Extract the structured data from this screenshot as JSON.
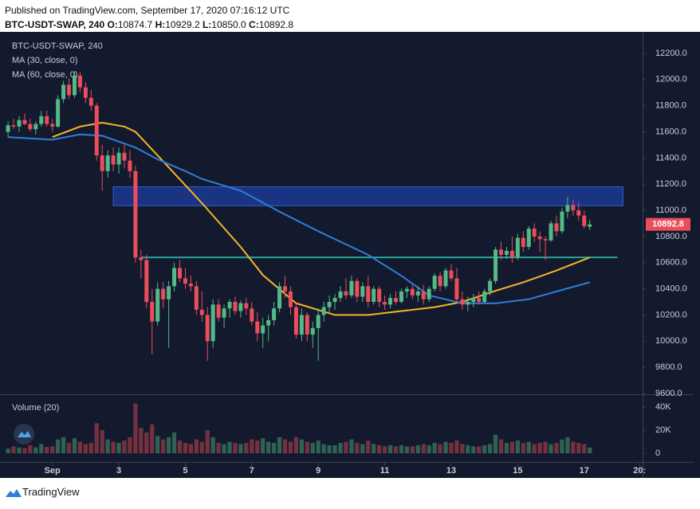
{
  "chart_data": {
    "type": "candlestick",
    "publisher": "Published on TradingView.com, September 17, 2020 07:16:12 UTC",
    "title": "BTC-USDT-SWAP, 240",
    "ohlc": {
      "labels": [
        "O:",
        "H:",
        "L:",
        "C:"
      ],
      "values": [
        10874.7,
        10929.2,
        10850,
        10892.8
      ],
      "value_labels": [
        "10874.7",
        "10929.2",
        "10850.0",
        "10892.8"
      ]
    },
    "up_color": "#53b987",
    "down_color": "#eb4d5c",
    "candles": [
      [
        11600,
        11680,
        11560,
        11650
      ],
      [
        11650,
        11700,
        11620,
        11640
      ],
      [
        11640,
        11720,
        11600,
        11690
      ],
      [
        11690,
        11740,
        11650,
        11660
      ],
      [
        11660,
        11700,
        11600,
        11620
      ],
      [
        11620,
        11680,
        11580,
        11660
      ],
      [
        11660,
        11760,
        11640,
        11720
      ],
      [
        11720,
        11760,
        11640,
        11660
      ],
      [
        11660,
        11700,
        11600,
        11640
      ],
      [
        11640,
        11880,
        11630,
        11850
      ],
      [
        11850,
        11990,
        11820,
        11960
      ],
      [
        11960,
        12010,
        11850,
        11880
      ],
      [
        11880,
        12060,
        11860,
        12030
      ],
      [
        12030,
        12060,
        11900,
        11940
      ],
      [
        11940,
        11980,
        11820,
        11860
      ],
      [
        11860,
        11920,
        11760,
        11800
      ],
      [
        11800,
        11820,
        11380,
        11420
      ],
      [
        11420,
        11500,
        11150,
        11300
      ],
      [
        11300,
        11460,
        11250,
        11420
      ],
      [
        11420,
        11480,
        11300,
        11350
      ],
      [
        11350,
        11480,
        11280,
        11440
      ],
      [
        11440,
        11500,
        11320,
        11380
      ],
      [
        11380,
        11460,
        11250,
        11300
      ],
      [
        11300,
        11340,
        10600,
        10640
      ],
      [
        10640,
        10700,
        10480,
        10620
      ],
      [
        10620,
        10660,
        10250,
        10300
      ],
      [
        10300,
        10400,
        9900,
        10150
      ],
      [
        10150,
        10450,
        10120,
        10400
      ],
      [
        10400,
        10450,
        10250,
        10320
      ],
      [
        10320,
        10460,
        9950,
        10420
      ],
      [
        10420,
        10600,
        10380,
        10560
      ],
      [
        10560,
        10620,
        10450,
        10480
      ],
      [
        10480,
        10560,
        10400,
        10440
      ],
      [
        10440,
        10500,
        10380,
        10420
      ],
      [
        10420,
        10460,
        10200,
        10240
      ],
      [
        10240,
        10380,
        10150,
        10200
      ],
      [
        10200,
        10260,
        9850,
        10000
      ],
      [
        10000,
        10320,
        9950,
        10280
      ],
      [
        10280,
        10320,
        10150,
        10180
      ],
      [
        10180,
        10280,
        10100,
        10250
      ],
      [
        10250,
        10320,
        10180,
        10300
      ],
      [
        10300,
        10340,
        10200,
        10230
      ],
      [
        10230,
        10310,
        10180,
        10290
      ],
      [
        10290,
        10330,
        10200,
        10250
      ],
      [
        10250,
        10300,
        10120,
        10150
      ],
      [
        10150,
        10220,
        10000,
        10060
      ],
      [
        10060,
        10180,
        9950,
        10120
      ],
      [
        10120,
        10200,
        10000,
        10160
      ],
      [
        10160,
        10300,
        10120,
        10250
      ],
      [
        10250,
        10450,
        10220,
        10420
      ],
      [
        10420,
        10500,
        10330,
        10380
      ],
      [
        10380,
        10420,
        10200,
        10260
      ],
      [
        10260,
        10300,
        10020,
        10050
      ],
      [
        10050,
        10250,
        10000,
        10200
      ],
      [
        10200,
        10220,
        10000,
        10050
      ],
      [
        10050,
        10150,
        9950,
        10100
      ],
      [
        10100,
        10250,
        9850,
        10200
      ],
      [
        10200,
        10300,
        10150,
        10260
      ],
      [
        10260,
        10350,
        10220,
        10300
      ],
      [
        10300,
        10360,
        10240,
        10330
      ],
      [
        10330,
        10420,
        10300,
        10380
      ],
      [
        10380,
        10480,
        10320,
        10350
      ],
      [
        10350,
        10500,
        10330,
        10460
      ],
      [
        10460,
        10480,
        10300,
        10340
      ],
      [
        10340,
        10450,
        10300,
        10420
      ],
      [
        10420,
        10500,
        10260,
        10300
      ],
      [
        10300,
        10420,
        10280,
        10400
      ],
      [
        10400,
        10420,
        10260,
        10300
      ],
      [
        10300,
        10350,
        10240,
        10280
      ],
      [
        10280,
        10360,
        10250,
        10330
      ],
      [
        10330,
        10380,
        10280,
        10300
      ],
      [
        10300,
        10400,
        10290,
        10380
      ],
      [
        10380,
        10420,
        10330,
        10400
      ],
      [
        10400,
        10430,
        10320,
        10350
      ],
      [
        10350,
        10420,
        10300,
        10380
      ],
      [
        10380,
        10430,
        10280,
        10320
      ],
      [
        10320,
        10420,
        10300,
        10400
      ],
      [
        10400,
        10520,
        10380,
        10500
      ],
      [
        10500,
        10530,
        10380,
        10420
      ],
      [
        10420,
        10560,
        10400,
        10540
      ],
      [
        10540,
        10590,
        10460,
        10480
      ],
      [
        10480,
        10560,
        10300,
        10320
      ],
      [
        10320,
        10380,
        10240,
        10280
      ],
      [
        10280,
        10340,
        10230,
        10300
      ],
      [
        10300,
        10360,
        10260,
        10330
      ],
      [
        10330,
        10380,
        10280,
        10300
      ],
      [
        10300,
        10400,
        10290,
        10380
      ],
      [
        10380,
        10480,
        10350,
        10460
      ],
      [
        10460,
        10720,
        10440,
        10700
      ],
      [
        10700,
        10760,
        10620,
        10660
      ],
      [
        10660,
        10720,
        10630,
        10690
      ],
      [
        10690,
        10800,
        10600,
        10640
      ],
      [
        10640,
        10820,
        10620,
        10790
      ],
      [
        10790,
        10840,
        10680,
        10720
      ],
      [
        10720,
        10880,
        10700,
        10860
      ],
      [
        10860,
        10900,
        10760,
        10800
      ],
      [
        10800,
        10840,
        10680,
        10780
      ],
      [
        10780,
        10800,
        10620,
        10770
      ],
      [
        10770,
        10920,
        10760,
        10900
      ],
      [
        10900,
        10960,
        10800,
        10840
      ],
      [
        10840,
        11020,
        10820,
        10990
      ],
      [
        10990,
        11100,
        10940,
        11040
      ],
      [
        11040,
        11080,
        10960,
        11000
      ],
      [
        11000,
        11060,
        10920,
        10960
      ],
      [
        10960,
        11000,
        10860,
        10880
      ],
      [
        10874.7,
        10929.2,
        10850,
        10892.8
      ]
    ],
    "xlim": [
      -0.3,
      114.4
    ],
    "xticks": [
      {
        "value": 8,
        "label": "Sep"
      },
      {
        "value": 20,
        "label": "3"
      },
      {
        "value": 32,
        "label": "5"
      },
      {
        "value": 44,
        "label": "7"
      },
      {
        "value": 56,
        "label": "9"
      },
      {
        "value": 68,
        "label": "11"
      },
      {
        "value": 80,
        "label": "13"
      },
      {
        "value": 92,
        "label": "15"
      },
      {
        "value": 104,
        "label": "17"
      },
      {
        "value": 114,
        "label": "20:"
      }
    ],
    "ylim": [
      9606,
      12352
    ],
    "yticks": [
      {
        "value": 12200,
        "label": "12200.0"
      },
      {
        "value": 12000,
        "label": "12000.0"
      },
      {
        "value": 11800,
        "label": "11800.0"
      },
      {
        "value": 11600,
        "label": "11600.0"
      },
      {
        "value": 11400,
        "label": "11400.0"
      },
      {
        "value": 11200,
        "label": "11200.0"
      },
      {
        "value": 11000,
        "label": "11000.0"
      },
      {
        "value": 10800,
        "label": "10800.0"
      },
      {
        "value": 10600,
        "label": "10600.0"
      },
      {
        "value": 10400,
        "label": "10400.0"
      },
      {
        "value": 10200,
        "label": "10200.0"
      },
      {
        "value": 10000,
        "label": "10000.0"
      },
      {
        "value": 9800,
        "label": "9800.0"
      },
      {
        "value": 9600,
        "label": "9600.0"
      }
    ],
    "last_price": {
      "value": 10892.8,
      "label": "10892.8"
    },
    "ma_series": [
      {
        "name": "MA (30, close, 0)",
        "color": "#f5b529",
        "x": [
          8,
          13,
          17,
          21,
          23,
          27,
          35,
          42,
          46,
          52,
          59,
          65,
          71,
          77,
          82,
          88,
          93,
          99,
          105
        ],
        "values": [
          11560,
          11640,
          11670,
          11640,
          11600,
          11420,
          11055,
          10720,
          10505,
          10290,
          10200,
          10200,
          10230,
          10260,
          10300,
          10385,
          10450,
          10540,
          10640
        ]
      },
      {
        "name": "MA (60, close, 0)",
        "color": "#2f7ed8",
        "x": [
          0,
          8,
          13,
          17,
          23,
          27,
          32,
          35,
          42,
          49,
          56,
          65,
          71,
          76,
          82,
          88,
          94,
          99,
          105
        ],
        "values": [
          11560,
          11540,
          11580,
          11570,
          11480,
          11390,
          11300,
          11240,
          11150,
          10990,
          10840,
          10660,
          10500,
          10350,
          10290,
          10290,
          10320,
          10380,
          10450
        ]
      }
    ],
    "zone": {
      "x": [
        19,
        111
      ],
      "y": [
        11035,
        11180
      ],
      "color": "#1e3ea0"
    },
    "level": {
      "x": [
        24,
        110
      ],
      "value": 10640,
      "color": "#26a69a"
    },
    "volume": {
      "title": "Volume (20)",
      "values": [
        4000,
        6000,
        5000,
        4500,
        7000,
        5000,
        8000,
        5500,
        6000,
        12000,
        14000,
        9000,
        13000,
        10000,
        8000,
        9000,
        26000,
        20000,
        12000,
        10000,
        9000,
        11000,
        14000,
        43000,
        22000,
        18000,
        25000,
        15000,
        12000,
        14000,
        18000,
        11000,
        9000,
        8000,
        12000,
        10000,
        20000,
        14000,
        9000,
        8000,
        10000,
        9000,
        8000,
        9000,
        12000,
        11000,
        13000,
        10000,
        9000,
        14000,
        12000,
        10000,
        14000,
        12000,
        10000,
        9000,
        11000,
        8000,
        7000,
        7000,
        9000,
        10000,
        12000,
        9000,
        8000,
        11000,
        8000,
        7000,
        6000,
        7000,
        6000,
        7000,
        6000,
        6000,
        7000,
        8000,
        7000,
        9000,
        8000,
        10000,
        9000,
        11000,
        8000,
        7000,
        6000,
        6000,
        7000,
        8000,
        16000,
        12000,
        9000,
        10000,
        11000,
        9000,
        10000,
        8000,
        9000,
        10000,
        8000,
        9000,
        12000,
        14000,
        10000,
        9000,
        8000,
        5000
      ],
      "ylim": [
        -4100,
        49700
      ],
      "yticks": [
        0,
        {
          "value": 20000,
          "label": "20K"
        },
        {
          "value": 40000,
          "label": "40K"
        }
      ]
    },
    "footer": "TradingView"
  }
}
